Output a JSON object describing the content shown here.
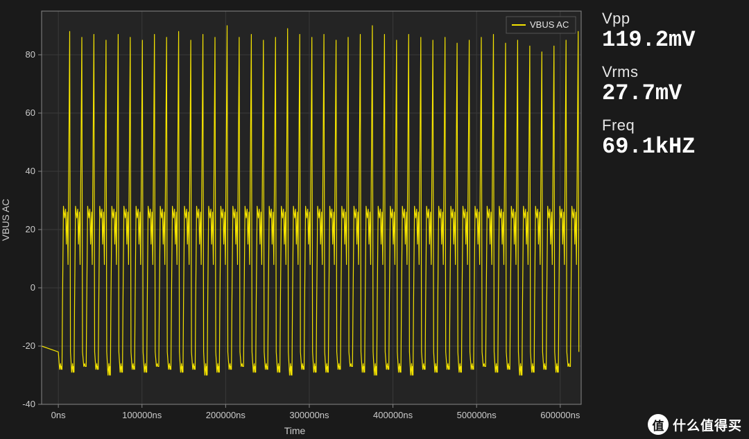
{
  "chart": {
    "type": "line",
    "background_color": "#1a1a1a",
    "plot_background": "#242424",
    "grid_color": "#3a3a3a",
    "axis_color": "#888888",
    "tick_color": "#cccccc",
    "tick_fontsize": 13,
    "label_fontsize": 14,
    "xlabel": "Time",
    "ylabel": "VBUS AC",
    "xlim": [
      -20000,
      625000
    ],
    "ylim": [
      -40,
      95
    ],
    "xticks": [
      0,
      100000,
      200000,
      300000,
      400000,
      500000,
      600000
    ],
    "xtick_labels": [
      "0ns",
      "100000ns",
      "200000ns",
      "300000ns",
      "400000ns",
      "500000ns",
      "600000ns"
    ],
    "yticks": [
      -40,
      -20,
      0,
      20,
      40,
      60,
      80
    ],
    "ytick_labels": [
      "-40",
      "-20",
      "0",
      "20",
      "40",
      "60",
      "80"
    ],
    "legend": {
      "position": "top-right",
      "items": [
        {
          "label": "VBUS AC",
          "color": "#f5e400"
        }
      ]
    },
    "series": [
      {
        "name": "VBUS AC",
        "color": "#f5e400",
        "line_width": 1.2,
        "period_ns": 14472,
        "n_cycles": 43,
        "cycle_x_offsets": [
          0.0,
          0.1,
          0.18,
          0.22,
          0.26,
          0.3,
          0.34,
          0.42,
          0.52,
          0.6,
          0.66,
          0.74,
          0.8,
          0.94,
          1.0
        ],
        "cycle_y": [
          -22,
          -28,
          -26,
          -29,
          -27,
          -30,
          -6,
          28,
          24,
          27,
          15,
          26,
          8,
          88,
          -22
        ],
        "peak_variation": [
          88,
          86,
          87,
          85,
          87,
          86,
          85,
          87,
          86,
          88,
          85,
          87,
          86,
          90,
          86,
          87,
          85,
          86,
          89,
          87,
          86,
          87,
          85,
          86,
          87,
          90,
          87,
          85,
          87,
          86,
          85,
          86,
          84,
          85,
          86,
          87,
          84,
          85,
          83,
          81,
          83,
          85,
          88
        ],
        "trough_variation": [
          -28,
          -29,
          -27,
          -28,
          -30,
          -29,
          -28,
          -29,
          -27,
          -28,
          -29,
          -28,
          -30,
          -29,
          -28,
          -27,
          -29,
          -28,
          -29,
          -30,
          -28,
          -29,
          -29,
          -28,
          -27,
          -29,
          -30,
          -28,
          -29,
          -30,
          -28,
          -29,
          -28,
          -29,
          -28,
          -27,
          -29,
          -28,
          -30,
          -29,
          -28,
          -29,
          -27
        ]
      }
    ]
  },
  "metrics": {
    "vpp_label": "Vpp",
    "vpp_value": "119.2mV",
    "vrms_label": "Vrms",
    "vrms_value": "27.7mV",
    "freq_label": "Freq",
    "freq_value": "69.1kHZ"
  },
  "watermark": {
    "badge": "值",
    "text": "什么值得买"
  }
}
